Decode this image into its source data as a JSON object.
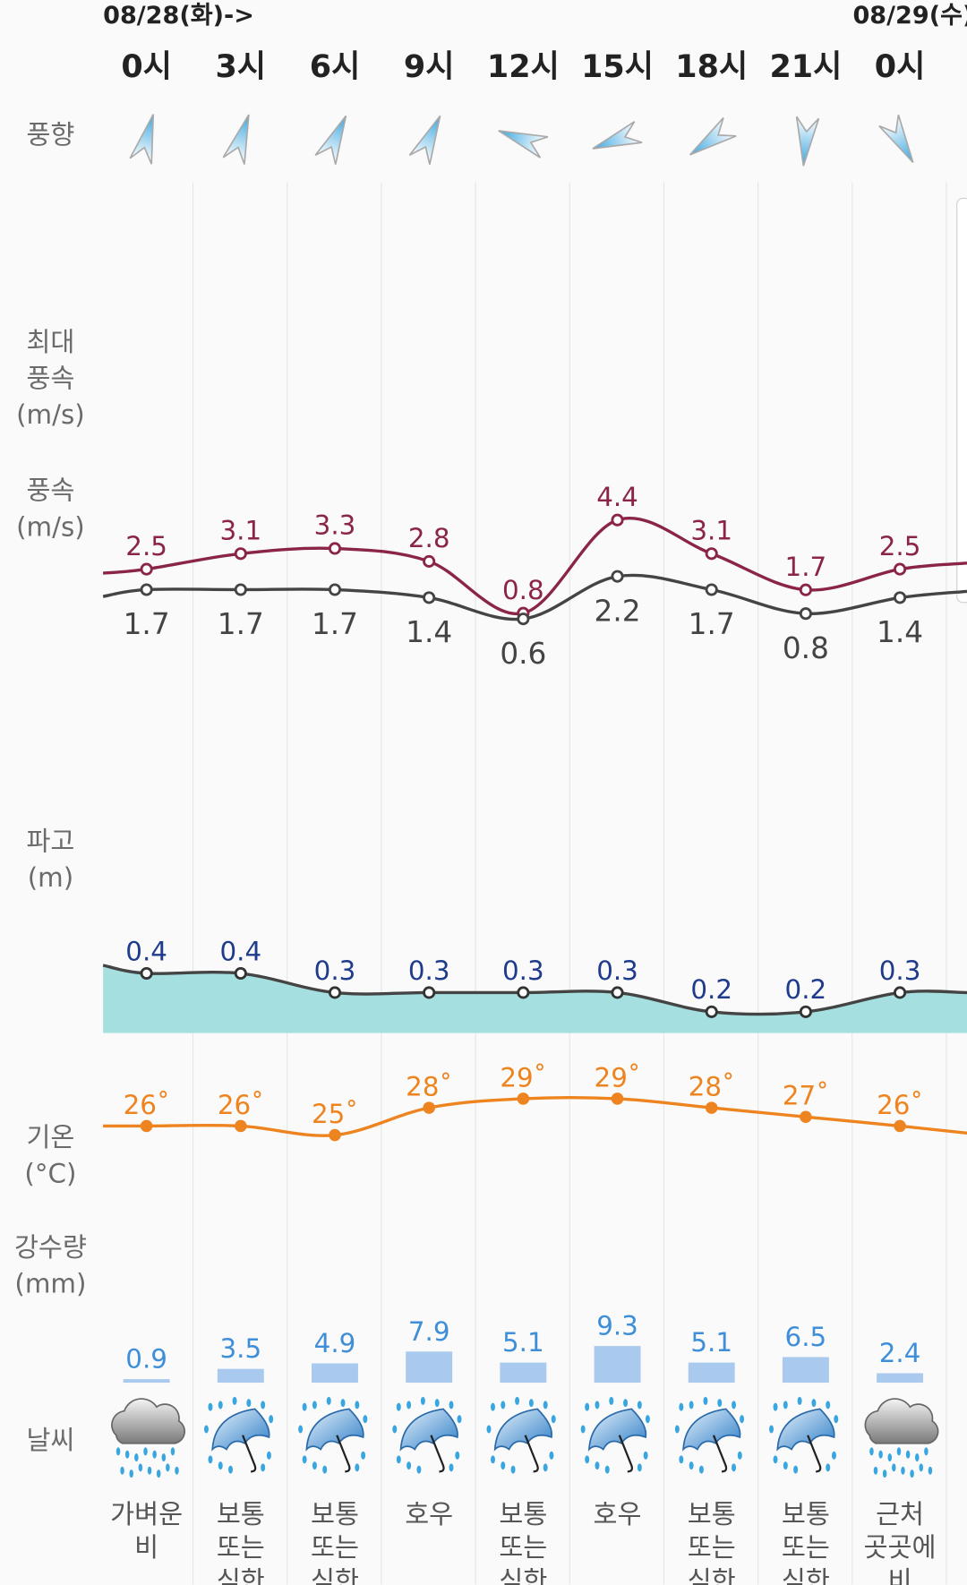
{
  "dates": {
    "start": "08/28(화)->",
    "next": "08/29(수)"
  },
  "row_labels": {
    "wind_direction": [
      "풍향"
    ],
    "max_wind": [
      "최대",
      "풍속",
      "(m/s)"
    ],
    "wind": [
      "풍속",
      "(m/s)"
    ],
    "wave": [
      "파고",
      "(m)"
    ],
    "temp": [
      "기온",
      "(°C)"
    ],
    "precip": [
      "강수량",
      "(mm)"
    ],
    "weather": [
      "날씨"
    ]
  },
  "colors": {
    "max_wind": "#8a2448",
    "wind": "#444444",
    "wave": "#1f3c8c",
    "wave_fill": "#a6dfe0",
    "temp": "#ee8420",
    "precip_text": "#3f8fd8",
    "precip_bar": "#a9c9ef"
  },
  "columns": [
    {
      "hour": "0시",
      "dir_deg": 15,
      "max_wind": "2.5",
      "wind": "1.7",
      "wave": "0.4",
      "temp": "26˚",
      "precip": "0.9",
      "icon": "cloud-rain",
      "weather": [
        "가벼운",
        "비"
      ]
    },
    {
      "hour": "3시",
      "dir_deg": 18,
      "max_wind": "3.1",
      "wind": "1.7",
      "wave": "0.4",
      "temp": "26˚",
      "precip": "3.5",
      "icon": "umbrella-rain",
      "weather": [
        "보통",
        "또는",
        "심한"
      ]
    },
    {
      "hour": "6시",
      "dir_deg": 25,
      "max_wind": "3.3",
      "wind": "1.7",
      "wave": "0.3",
      "temp": "25˚",
      "precip": "4.9",
      "icon": "umbrella-rain",
      "weather": [
        "보통",
        "또는",
        "심한"
      ]
    },
    {
      "hour": "9시",
      "dir_deg": 25,
      "max_wind": "2.8",
      "wind": "1.4",
      "wave": "0.3",
      "temp": "28˚",
      "precip": "7.9",
      "icon": "umbrella-rain",
      "weather": [
        "호우"
      ]
    },
    {
      "hour": "12시",
      "dir_deg": 290,
      "max_wind": "0.8",
      "wind": "0.6",
      "wave": "0.3",
      "temp": "29˚",
      "precip": "5.1",
      "icon": "umbrella-rain",
      "weather": [
        "보통",
        "또는",
        "심한"
      ]
    },
    {
      "hour": "15시",
      "dir_deg": 250,
      "max_wind": "4.4",
      "wind": "2.2",
      "wave": "0.3",
      "temp": "29˚",
      "precip": "9.3",
      "icon": "umbrella-rain",
      "weather": [
        "호우"
      ]
    },
    {
      "hour": "18시",
      "dir_deg": 235,
      "max_wind": "3.1",
      "wind": "1.7",
      "wave": "0.2",
      "temp": "28˚",
      "precip": "5.1",
      "icon": "umbrella-rain",
      "weather": [
        "보통",
        "또는",
        "심한"
      ]
    },
    {
      "hour": "21시",
      "dir_deg": 185,
      "max_wind": "1.7",
      "wind": "0.8",
      "wave": "0.2",
      "temp": "27˚",
      "precip": "6.5",
      "icon": "umbrella-rain",
      "weather": [
        "보통",
        "또는",
        "심한"
      ]
    },
    {
      "hour": "0시",
      "dir_deg": 150,
      "max_wind": "2.5",
      "wind": "1.4",
      "wave": "0.3",
      "temp": "26˚",
      "precip": "2.4",
      "icon": "cloud-rain",
      "weather": [
        "근처",
        "곳곳에",
        "비"
      ]
    }
  ]
}
